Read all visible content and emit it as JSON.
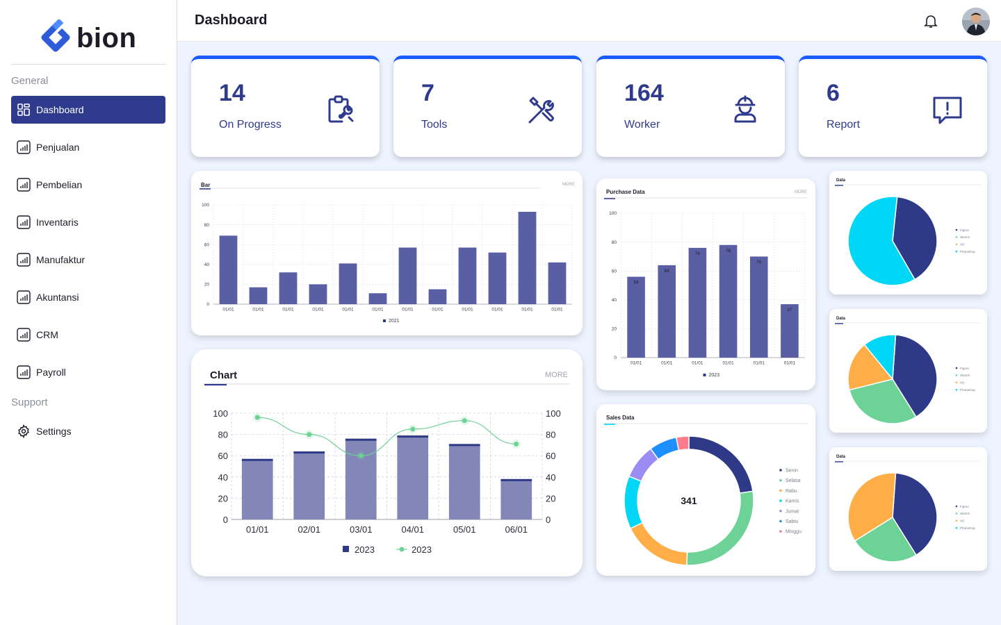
{
  "app": {
    "logo_text": "bion",
    "page_title": "Dashboard"
  },
  "sidebar": {
    "general_label": "General",
    "support_label": "Support",
    "items": [
      {
        "label": "Dashboard",
        "icon": "grid-icon"
      },
      {
        "label": "Penjualan",
        "icon": "bar-chart-icon"
      },
      {
        "label": "Pembelian",
        "icon": "bar-chart-icon"
      },
      {
        "label": "Inventaris",
        "icon": "bar-chart-icon"
      },
      {
        "label": "Manufaktur",
        "icon": "bar-chart-icon"
      },
      {
        "label": "Akuntansi",
        "icon": "bar-chart-icon"
      },
      {
        "label": "CRM",
        "icon": "bar-chart-icon"
      },
      {
        "label": "Payroll",
        "icon": "bar-chart-icon"
      }
    ],
    "settings_label": "Settings"
  },
  "stats": [
    {
      "value": "14",
      "label": "On Progress",
      "icon": "clipboard-tool-icon"
    },
    {
      "value": "7",
      "label": "Tools",
      "icon": "tools-icon"
    },
    {
      "value": "164",
      "label": "Worker",
      "icon": "worker-icon"
    },
    {
      "value": "6",
      "label": "Report",
      "icon": "report-icon"
    }
  ],
  "colors": {
    "accent": "#2e3a8c",
    "bar": "#5a5fa3",
    "cyan": "#00d6f5",
    "green": "#6dd296",
    "orange": "#ffae47",
    "navy": "#2e3a87",
    "top_border": "#1a5bff"
  },
  "bar_panel": {
    "title": "Bar",
    "more": "MORE"
  },
  "purchase_panel": {
    "title": "Purchase Data",
    "more": "MORE"
  },
  "combo_panel": {
    "title": "Chart",
    "more": "MORE"
  },
  "sales_panel": {
    "title": "Sales Data",
    "center_value": "341"
  },
  "pie_panels": [
    {
      "title": "Data"
    },
    {
      "title": "Data"
    },
    {
      "title": "Data"
    }
  ],
  "chart_data": [
    {
      "type": "bar",
      "title": "Bar",
      "categories": [
        "01/01",
        "01/01",
        "01/01",
        "01/01",
        "01/01",
        "01/01",
        "01/01",
        "01/01",
        "01/01",
        "01/01",
        "01/01",
        "01/01"
      ],
      "yticks": [
        "0",
        "20",
        "40",
        "60",
        "80",
        "100"
      ],
      "ylim": [
        0,
        100
      ],
      "series": [
        {
          "name": "2021",
          "values": [
            69,
            17,
            32,
            20,
            41,
            11,
            57,
            15,
            57,
            52,
            93,
            42
          ]
        }
      ]
    },
    {
      "type": "bar",
      "title": "Purchase Data",
      "categories": [
        "01/01",
        "01/01",
        "01/01",
        "01/01",
        "01/01",
        "01/01"
      ],
      "yticks": [
        "0",
        "20",
        "40",
        "60",
        "80",
        "100"
      ],
      "ylim": [
        0,
        100
      ],
      "series": [
        {
          "name": "2023",
          "values": [
            56,
            64,
            76,
            78,
            70,
            37
          ]
        }
      ],
      "data_labels": [
        "56",
        "64",
        "76",
        "78",
        "70",
        "37"
      ]
    },
    {
      "type": "bar",
      "title": "Chart",
      "categories": [
        "01/01",
        "02/01",
        "03/01",
        "04/01",
        "05/01",
        "06/01"
      ],
      "yticks": [
        "0",
        "20",
        "40",
        "60",
        "80",
        "100"
      ],
      "ylim": [
        0,
        100
      ],
      "series": [
        {
          "name": "2023",
          "type": "bar",
          "values": [
            57,
            64,
            76,
            79,
            71,
            38
          ]
        },
        {
          "name": "2023",
          "type": "line",
          "values": [
            96,
            80,
            60,
            85,
            93,
            71
          ]
        }
      ]
    },
    {
      "type": "pie",
      "title": "Sales Data",
      "donut": true,
      "center_label": "341",
      "labels": [
        "Senin",
        "Selasa",
        "Rabu",
        "Kamis",
        "Jumat",
        "Sabtu",
        "Minggu"
      ],
      "values": [
        65,
        80,
        50,
        38,
        25,
        20,
        9
      ],
      "colors": [
        "#2e3a87",
        "#6dd296",
        "#ffae47",
        "#00d6f5",
        "#9b8cf5",
        "#1f8fff",
        "#ff7c8a"
      ]
    },
    {
      "type": "pie",
      "title": "Data",
      "labels": [
        "Figma",
        "Sketch",
        "XD",
        "Photoshop"
      ],
      "values": [
        40,
        0,
        0,
        60
      ],
      "colors": [
        "#2e3a87",
        "#6dd296",
        "#ffae47",
        "#00d6f5"
      ]
    },
    {
      "type": "pie",
      "title": "Data",
      "labels": [
        "Figma",
        "Sketch",
        "XD",
        "Photoshop"
      ],
      "values": [
        40,
        30,
        18,
        12
      ],
      "colors": [
        "#2e3a87",
        "#6dd296",
        "#ffae47",
        "#00d6f5"
      ]
    },
    {
      "type": "pie",
      "title": "Data",
      "labels": [
        "Figma",
        "Sketch",
        "XD",
        "Photoshop"
      ],
      "values": [
        40,
        25,
        35,
        0
      ],
      "colors": [
        "#2e3a87",
        "#6dd296",
        "#ffae47",
        "#00d6f5"
      ]
    }
  ]
}
